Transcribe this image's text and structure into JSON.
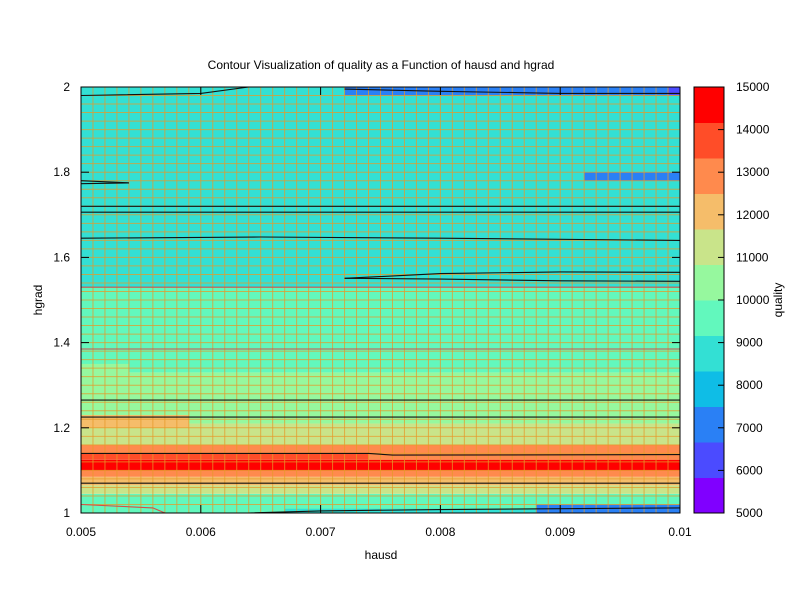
{
  "chart_data": {
    "type": "heatmap",
    "title": "Contour Visualization of quality as a Function of hausd and hgrad",
    "xlabel": "hausd",
    "ylabel": "hgrad",
    "colorbar_label": "quality",
    "xlim": [
      0.005,
      0.01
    ],
    "ylim": [
      1,
      2
    ],
    "x_ticks": [
      "0.005",
      "0.006",
      "0.007",
      "0.008",
      "0.009",
      "0.01"
    ],
    "x_tick_values": [
      0.005,
      0.006,
      0.007,
      0.008,
      0.009,
      0.01
    ],
    "y_ticks": [
      "1",
      "1.2",
      "1.4",
      "1.6",
      "1.8",
      "2"
    ],
    "y_tick_values": [
      1,
      1.2,
      1.4,
      1.6,
      1.8,
      2
    ],
    "colorbar_ticks": [
      "5000",
      "6000",
      "7000",
      "8000",
      "9000",
      "10000",
      "11000",
      "12000",
      "13000",
      "14000",
      "15000"
    ],
    "colorbar_values": [
      5000,
      6000,
      7000,
      8000,
      9000,
      10000,
      11000,
      12000,
      13000,
      14000,
      15000
    ],
    "colorbar_range": [
      5000,
      15000
    ],
    "palette": [
      "#8000ff",
      "#4b4bff",
      "#2a80f5",
      "#0fbde6",
      "#33e0d4",
      "#62f8bd",
      "#96f89e",
      "#c9e48a",
      "#f5bd6a",
      "#ff8a4d",
      "#ff4d28",
      "#ff0000"
    ],
    "grid_color": "#e69a2a",
    "grid": true,
    "bands": [
      {
        "y0": 1.0,
        "y1": 1.02,
        "value": 9300
      },
      {
        "y0": 1.02,
        "y1": 1.045,
        "value": 9800
      },
      {
        "y0": 1.045,
        "y1": 1.065,
        "value": 11000
      },
      {
        "y0": 1.065,
        "y1": 1.085,
        "value": 12300
      },
      {
        "y0": 1.085,
        "y1": 1.1,
        "value": 13300
      },
      {
        "y0": 1.1,
        "y1": 1.125,
        "value": 14900
      },
      {
        "y0": 1.125,
        "y1": 1.14,
        "value": 13800
      },
      {
        "y0": 1.14,
        "y1": 1.16,
        "value": 12600
      },
      {
        "y0": 1.16,
        "y1": 1.18,
        "value": 11600
      },
      {
        "y0": 1.18,
        "y1": 1.21,
        "value": 10900
      },
      {
        "y0": 1.21,
        "y1": 1.26,
        "value": 10400
      },
      {
        "y0": 1.26,
        "y1": 1.33,
        "value": 10300
      },
      {
        "y0": 1.33,
        "y1": 1.53,
        "value": 9700
      },
      {
        "y0": 1.53,
        "y1": 2.0,
        "value": 8400
      }
    ],
    "patches": [
      {
        "x0": 0.005,
        "x1": 0.0054,
        "y0": 1.33,
        "y1": 1.35,
        "value": 10500
      },
      {
        "x0": 0.005,
        "x1": 0.0059,
        "y0": 1.2,
        "y1": 1.23,
        "value": 11900
      },
      {
        "x0": 0.0092,
        "x1": 0.01,
        "y0": 1.78,
        "y1": 1.8,
        "value": 7200
      },
      {
        "x0": 0.0072,
        "x1": 0.01,
        "y0": 1.98,
        "y1": 2.0,
        "value": 7200
      },
      {
        "x0": 0.0099,
        "x1": 0.01,
        "y0": 1.98,
        "y1": 2.0,
        "value": 6200
      },
      {
        "x0": 0.0088,
        "x1": 0.01,
        "y0": 1.0,
        "y1": 1.02,
        "value": 7200
      },
      {
        "x0": 0.0067,
        "x1": 0.0088,
        "y0": 1.0,
        "y1": 1.01,
        "value": 8400
      },
      {
        "x0": 0.0074,
        "x1": 0.01,
        "y0": 1.125,
        "y1": 1.14,
        "value": 13300
      }
    ],
    "contours": [
      {
        "value": 8000,
        "points": [
          [
            0.005,
            1.706
          ],
          [
            0.01,
            1.706
          ]
        ]
      },
      {
        "value": 8000,
        "points": [
          [
            0.005,
            1.72
          ],
          [
            0.01,
            1.72
          ]
        ]
      },
      {
        "value": 8000,
        "points": [
          [
            0.005,
            1.645
          ],
          [
            0.0065,
            1.648
          ],
          [
            0.008,
            1.645
          ],
          [
            0.01,
            1.64
          ]
        ]
      },
      {
        "value": 8000,
        "points": [
          [
            0.0072,
            1.551
          ],
          [
            0.008,
            1.562
          ],
          [
            0.009,
            1.566
          ],
          [
            0.01,
            1.565
          ]
        ]
      },
      {
        "value": 8000,
        "points": [
          [
            0.0072,
            1.551
          ],
          [
            0.008,
            1.549
          ],
          [
            0.009,
            1.545
          ],
          [
            0.01,
            1.544
          ]
        ]
      },
      {
        "value": 8000,
        "points": [
          [
            0.005,
            1.78
          ],
          [
            0.0054,
            1.775
          ]
        ]
      },
      {
        "value": 8000,
        "points": [
          [
            0.005,
            1.773
          ],
          [
            0.0054,
            1.775
          ]
        ]
      },
      {
        "value": 8000,
        "points": [
          [
            0.005,
            1.98
          ],
          [
            0.006,
            1.985
          ],
          [
            0.0064,
            2.0
          ]
        ]
      },
      {
        "value": 8000,
        "points": [
          [
            0.0072,
            1.995
          ],
          [
            0.008,
            1.99
          ],
          [
            0.009,
            1.985
          ],
          [
            0.01,
            1.985
          ]
        ]
      },
      {
        "value": 9000,
        "points": [
          [
            0.005,
            1.53
          ],
          [
            0.01,
            1.53
          ]
        ]
      },
      {
        "value": 9000,
        "points": [
          [
            0.005,
            1.385
          ],
          [
            0.01,
            1.385
          ]
        ]
      },
      {
        "value": 10000,
        "points": [
          [
            0.005,
            1.265
          ],
          [
            0.01,
            1.265
          ]
        ]
      },
      {
        "value": 10000,
        "points": [
          [
            0.005,
            1.225
          ],
          [
            0.006,
            1.225
          ],
          [
            0.01,
            1.225
          ]
        ]
      },
      {
        "value": 12000,
        "points": [
          [
            0.005,
            1.14
          ],
          [
            0.0074,
            1.14
          ],
          [
            0.0076,
            1.136
          ],
          [
            0.01,
            1.137
          ]
        ]
      },
      {
        "value": 12000,
        "points": [
          [
            0.005,
            1.07
          ],
          [
            0.01,
            1.07
          ]
        ]
      },
      {
        "value": 9000,
        "points": [
          [
            0.005,
            1.02
          ],
          [
            0.0056,
            1.012
          ],
          [
            0.0057,
            1.0
          ]
        ]
      },
      {
        "value": 8000,
        "points": [
          [
            0.0064,
            1.0
          ],
          [
            0.007,
            1.005
          ],
          [
            0.008,
            1.008
          ],
          [
            0.009,
            1.01
          ],
          [
            0.01,
            1.012
          ]
        ]
      }
    ]
  }
}
